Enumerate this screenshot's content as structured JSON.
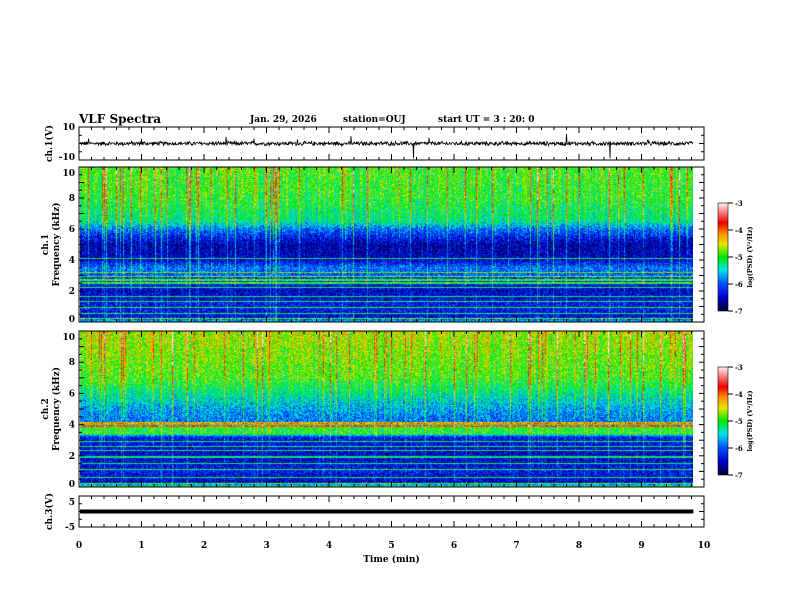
{
  "header": {
    "title": "VLF Spectra",
    "date": "Jan. 29, 2026",
    "station": "station=OUJ",
    "start": "start UT =  3 : 20: 0"
  },
  "chart_data": [
    {
      "type": "line",
      "name": "ch1-waveform",
      "ylabel": "ch.1(V)",
      "ylim": [
        -10,
        10
      ],
      "yticks": [
        "10",
        "-10"
      ],
      "baseline": 0,
      "noise_amplitude": 1.5,
      "spikes": [
        {
          "t": 0.15,
          "v": 3
        },
        {
          "t": 1.0,
          "v": 3
        },
        {
          "t": 1.7,
          "v": 4
        },
        {
          "t": 1.9,
          "v": 3
        },
        {
          "t": 2.35,
          "v": 4
        },
        {
          "t": 2.5,
          "v": 2.5
        },
        {
          "t": 2.8,
          "v": 3
        },
        {
          "t": 3.5,
          "v": 2.5
        },
        {
          "t": 4.35,
          "v": 4.5
        },
        {
          "t": 5.35,
          "v": -9
        },
        {
          "t": 5.6,
          "v": 3.5
        },
        {
          "t": 7.8,
          "v": 6
        },
        {
          "t": 8.5,
          "v": -9
        },
        {
          "t": 9.1,
          "v": 2
        }
      ]
    },
    {
      "type": "heatmap",
      "name": "ch1-spectrogram",
      "ylabel": "ch.1\nFrequency (kHz)",
      "ylim": [
        0,
        10
      ],
      "yticks": [
        "0",
        "2",
        "4",
        "6",
        "8",
        "10"
      ],
      "colorbar": {
        "label": "log(PSD) (V²/Hz)",
        "range": [
          -7,
          -3
        ],
        "ticks": [
          "-3",
          "-4",
          "-5",
          "-6",
          "-7"
        ]
      },
      "band_profile_kHz_logpsd": [
        [
          0,
          -5.6
        ],
        [
          0.3,
          -6.4
        ],
        [
          1,
          -6.3
        ],
        [
          2,
          -6.5
        ],
        [
          3,
          -6.0
        ],
        [
          3.5,
          -5.9
        ],
        [
          4,
          -6.5
        ],
        [
          5,
          -6.6
        ],
        [
          6,
          -5.9
        ],
        [
          6.5,
          -5.3
        ],
        [
          8,
          -5.0
        ],
        [
          10,
          -4.9
        ]
      ],
      "horizontal_lines_kHz": [
        0.2,
        0.5,
        0.9,
        1.3,
        1.6,
        2.2,
        2.5,
        2.7,
        2.9,
        3.2,
        4.1
      ]
    },
    {
      "type": "heatmap",
      "name": "ch2-spectrogram",
      "ylabel": "ch.2\nFrequency (kHz)",
      "ylim": [
        0,
        10
      ],
      "yticks": [
        "0",
        "2",
        "4",
        "6",
        "8",
        "10"
      ],
      "colorbar": {
        "label": "log(PSD) (V²/Hz)",
        "range": [
          -7,
          -3
        ],
        "ticks": [
          "-3",
          "-4",
          "-5",
          "-6",
          "-7"
        ]
      },
      "band_profile_kHz_logpsd": [
        [
          0,
          -5.2
        ],
        [
          0.3,
          -6.5
        ],
        [
          1,
          -6.3
        ],
        [
          2,
          -6.5
        ],
        [
          3.2,
          -6.3
        ],
        [
          3.4,
          -5.0
        ],
        [
          4,
          -5.1
        ],
        [
          4.2,
          -5.9
        ],
        [
          5,
          -5.7
        ],
        [
          6,
          -5.3
        ],
        [
          7,
          -4.9
        ],
        [
          10,
          -4.6
        ]
      ],
      "horizontal_lines_kHz": [
        0.2,
        0.6,
        1.1,
        1.5,
        1.9,
        2.3,
        2.6,
        2.9,
        3.9,
        4.1
      ]
    },
    {
      "type": "line",
      "name": "ch3-waveform",
      "ylabel": "ch.3(V)",
      "ylim": [
        -5,
        5
      ],
      "yticks": [
        "5",
        "-5"
      ],
      "baseline": 0
    }
  ],
  "xaxis": {
    "label": "Time (min)",
    "range": [
      0,
      10
    ],
    "data_end": 9.83,
    "ticks": [
      "0",
      "1",
      "2",
      "3",
      "4",
      "5",
      "6",
      "7",
      "8",
      "9",
      "10"
    ]
  }
}
